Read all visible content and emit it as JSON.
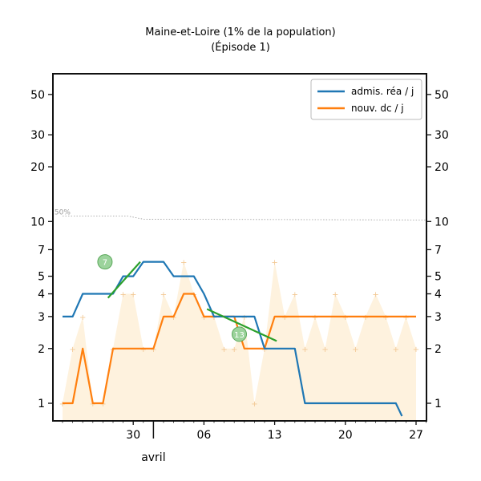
{
  "chart_data": {
    "type": "line",
    "title": "Maine-et-Loire (1% de la population)",
    "subtitle": "(Épisode 1)",
    "y_scale": "log",
    "ylim": [
      0.8,
      65
    ],
    "y_ticks": [
      1,
      2,
      3,
      4,
      5,
      7,
      10,
      20,
      30,
      50
    ],
    "x_range": [
      "2020-03-23",
      "2020-04-28"
    ],
    "x_ticks": [
      {
        "date": "2020-03-30",
        "label": "30"
      },
      {
        "date": "2020-04-06",
        "label": "06"
      },
      {
        "date": "2020-04-13",
        "label": "13"
      },
      {
        "date": "2020-04-20",
        "label": "20"
      },
      {
        "date": "2020-04-27",
        "label": "27"
      }
    ],
    "month_label": {
      "date": "2020-04-01",
      "text": "avril"
    },
    "legend_position": "top-right",
    "reference_line": {
      "label": "50%",
      "values": [
        [
          0,
          10.7
        ],
        [
          6.5,
          10.7
        ],
        [
          8,
          10.3
        ],
        [
          36,
          10.2
        ]
      ]
    },
    "series": [
      {
        "name": "admis. réa / j",
        "color": "#1f77b4",
        "values": [
          [
            0,
            3
          ],
          [
            1,
            3
          ],
          [
            2,
            4
          ],
          [
            3,
            4
          ],
          [
            4,
            4
          ],
          [
            5,
            4
          ],
          [
            6,
            5
          ],
          [
            7,
            5
          ],
          [
            8,
            6
          ],
          [
            9,
            6
          ],
          [
            10,
            6
          ],
          [
            11,
            5
          ],
          [
            12,
            5
          ],
          [
            13,
            5
          ],
          [
            14,
            4
          ],
          [
            15,
            3
          ],
          [
            16,
            3
          ],
          [
            17,
            3
          ],
          [
            18,
            3
          ],
          [
            19,
            3
          ],
          [
            20,
            2
          ],
          [
            21,
            2
          ],
          [
            22,
            2
          ],
          [
            23,
            2
          ],
          [
            24,
            1
          ],
          [
            25,
            1
          ],
          [
            26,
            1
          ],
          [
            27,
            1
          ],
          [
            28,
            1
          ],
          [
            29,
            1
          ],
          [
            30,
            1
          ],
          [
            31,
            1
          ],
          [
            32,
            1
          ],
          [
            33,
            1
          ],
          [
            33.6,
            0.85
          ]
        ]
      },
      {
        "name": "nouv. dc / j",
        "color": "#ff7f0e",
        "values": [
          [
            0,
            1
          ],
          [
            1,
            1
          ],
          [
            2,
            2
          ],
          [
            3,
            1
          ],
          [
            4,
            1
          ],
          [
            5,
            2
          ],
          [
            6,
            2
          ],
          [
            7,
            2
          ],
          [
            8,
            2
          ],
          [
            9,
            2
          ],
          [
            10,
            3
          ],
          [
            11,
            3
          ],
          [
            12,
            4
          ],
          [
            13,
            4
          ],
          [
            14,
            3
          ],
          [
            15,
            3
          ],
          [
            16,
            3
          ],
          [
            17,
            3
          ],
          [
            18,
            2
          ],
          [
            19,
            2
          ],
          [
            20,
            2
          ],
          [
            21,
            3
          ],
          [
            22,
            3
          ],
          [
            23,
            3
          ],
          [
            24,
            3
          ],
          [
            25,
            3
          ],
          [
            26,
            3
          ],
          [
            27,
            3
          ],
          [
            28,
            3
          ],
          [
            29,
            3
          ],
          [
            30,
            3
          ],
          [
            31,
            3
          ],
          [
            32,
            3
          ],
          [
            33,
            3
          ],
          [
            34,
            3
          ],
          [
            35,
            3
          ]
        ]
      }
    ],
    "daily_points": [
      [
        0,
        1
      ],
      [
        1,
        2
      ],
      [
        2,
        3
      ],
      [
        3,
        1
      ],
      [
        4,
        1
      ],
      [
        5,
        2
      ],
      [
        6,
        4
      ],
      [
        7,
        4
      ],
      [
        8,
        2
      ],
      [
        9,
        2
      ],
      [
        10,
        4
      ],
      [
        11,
        3
      ],
      [
        12,
        6
      ],
      [
        13,
        4
      ],
      [
        14,
        3
      ],
      [
        15,
        3
      ],
      [
        16,
        2
      ],
      [
        17,
        2
      ],
      [
        18,
        3
      ],
      [
        19,
        1
      ],
      [
        20,
        2
      ],
      [
        21,
        6
      ],
      [
        22,
        3
      ],
      [
        23,
        4
      ],
      [
        24,
        2
      ],
      [
        25,
        3
      ],
      [
        26,
        2
      ],
      [
        27,
        4
      ],
      [
        28,
        3
      ],
      [
        29,
        2
      ],
      [
        30,
        3
      ],
      [
        31,
        4
      ],
      [
        32,
        3
      ],
      [
        33,
        2
      ],
      [
        34,
        3
      ],
      [
        35,
        2
      ]
    ],
    "trend_lines": [
      {
        "label": "7",
        "color": "#2ca02c",
        "values": [
          [
            4.5,
            3.8
          ],
          [
            7.7,
            6.0
          ]
        ],
        "badge_at": [
          4.2,
          6.0
        ]
      },
      {
        "label": "13",
        "color": "#2ca02c",
        "values": [
          [
            14.3,
            3.3
          ],
          [
            21.2,
            2.2
          ]
        ],
        "badge_at": [
          17.5,
          2.4
        ]
      }
    ]
  }
}
